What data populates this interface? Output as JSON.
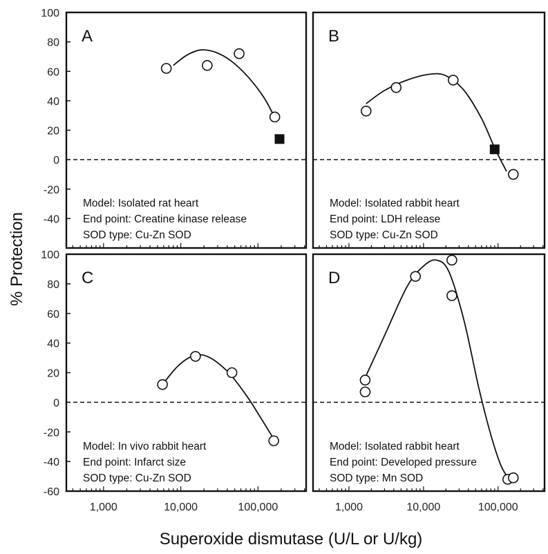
{
  "chart_data": {
    "type": "scatter",
    "ylabel": "% Protection",
    "xlabel": "Superoxide dismutase (U/L or U/kg)",
    "x_scale": "log",
    "x_ticks": [
      1000,
      10000,
      100000
    ],
    "x_tick_labels": [
      "1,000",
      "10,000",
      "100,000"
    ],
    "panels": [
      {
        "id": "A",
        "letter": "A",
        "ylim": [
          -60,
          100
        ],
        "y_ticks": [
          100,
          80,
          60,
          40,
          20,
          0,
          -20,
          -40
        ],
        "y_tick_labels": [
          "100",
          "80",
          "60",
          "40",
          "20",
          "0",
          "-20",
          "-40"
        ],
        "open_points": [
          {
            "x": 6500,
            "y": 62
          },
          {
            "x": 22000,
            "y": 64
          },
          {
            "x": 57000,
            "y": 72
          },
          {
            "x": 165000,
            "y": 29
          }
        ],
        "filled_points": [
          {
            "x": 190000,
            "y": 14
          }
        ],
        "fit_curve": [
          {
            "x": 8000,
            "y": 64
          },
          {
            "x": 12000,
            "y": 71
          },
          {
            "x": 18000,
            "y": 74.5
          },
          {
            "x": 28000,
            "y": 73
          },
          {
            "x": 45000,
            "y": 67
          },
          {
            "x": 75000,
            "y": 56
          },
          {
            "x": 120000,
            "y": 42
          },
          {
            "x": 175000,
            "y": 26
          }
        ],
        "notes": [
          "Model: Isolated rat heart",
          "End point: Creatine kinase release",
          "SOD type: Cu-Zn SOD"
        ]
      },
      {
        "id": "B",
        "letter": "B",
        "ylim": [
          -60,
          100
        ],
        "y_ticks": [],
        "y_tick_labels": [],
        "open_points": [
          {
            "x": 1700,
            "y": 33
          },
          {
            "x": 4300,
            "y": 49
          },
          {
            "x": 25000,
            "y": 54
          },
          {
            "x": 160000,
            "y": -10
          }
        ],
        "filled_points": [
          {
            "x": 90000,
            "y": 7
          }
        ],
        "fit_curve": [
          {
            "x": 1700,
            "y": 38
          },
          {
            "x": 3000,
            "y": 47
          },
          {
            "x": 6000,
            "y": 54
          },
          {
            "x": 12000,
            "y": 58
          },
          {
            "x": 20000,
            "y": 57
          },
          {
            "x": 35000,
            "y": 47
          },
          {
            "x": 60000,
            "y": 28
          },
          {
            "x": 90000,
            "y": 8
          },
          {
            "x": 130000,
            "y": -8
          }
        ],
        "notes": [
          "Model: Isolated rabbit heart",
          "End point: LDH release",
          "SOD type: Cu-Zn SOD"
        ]
      },
      {
        "id": "C",
        "letter": "C",
        "ylim": [
          -60,
          100
        ],
        "y_ticks": [
          100,
          80,
          60,
          40,
          20,
          0,
          -20,
          -40,
          -60
        ],
        "y_tick_labels": [
          "100",
          "80",
          "60",
          "40",
          "20",
          "0",
          "-20",
          "-40",
          "-60"
        ],
        "open_points": [
          {
            "x": 5800,
            "y": 12
          },
          {
            "x": 15500,
            "y": 31
          },
          {
            "x": 46000,
            "y": 20
          },
          {
            "x": 160000,
            "y": -26
          }
        ],
        "filled_points": [],
        "fit_curve": [
          {
            "x": 5800,
            "y": 12
          },
          {
            "x": 9000,
            "y": 24
          },
          {
            "x": 14000,
            "y": 31
          },
          {
            "x": 22000,
            "y": 31
          },
          {
            "x": 40000,
            "y": 21
          },
          {
            "x": 70000,
            "y": 5
          },
          {
            "x": 110000,
            "y": -11
          },
          {
            "x": 165000,
            "y": -26
          }
        ],
        "notes": [
          "Model: In vivo rabbit heart",
          "End point: Infarct size",
          "SOD type: Cu-Zn SOD"
        ]
      },
      {
        "id": "D",
        "letter": "D",
        "ylim": [
          -60,
          100
        ],
        "y_ticks": [],
        "y_tick_labels": [],
        "open_points": [
          {
            "x": 1650,
            "y": 15
          },
          {
            "x": 1650,
            "y": 7
          },
          {
            "x": 7800,
            "y": 85
          },
          {
            "x": 24000,
            "y": 96
          },
          {
            "x": 24000,
            "y": 72
          },
          {
            "x": 135000,
            "y": -52
          },
          {
            "x": 160000,
            "y": -51
          }
        ],
        "filled_points": [],
        "fit_curve": [
          {
            "x": 1700,
            "y": 18
          },
          {
            "x": 3000,
            "y": 45
          },
          {
            "x": 6000,
            "y": 78
          },
          {
            "x": 10000,
            "y": 92
          },
          {
            "x": 15000,
            "y": 96
          },
          {
            "x": 22000,
            "y": 88
          },
          {
            "x": 35000,
            "y": 55
          },
          {
            "x": 55000,
            "y": 10
          },
          {
            "x": 80000,
            "y": -22
          },
          {
            "x": 110000,
            "y": -43
          },
          {
            "x": 145000,
            "y": -53
          }
        ],
        "notes": [
          "Model: Isolated rabbit heart",
          "End point: Developed pressure",
          "SOD type: Mn SOD"
        ]
      }
    ]
  }
}
